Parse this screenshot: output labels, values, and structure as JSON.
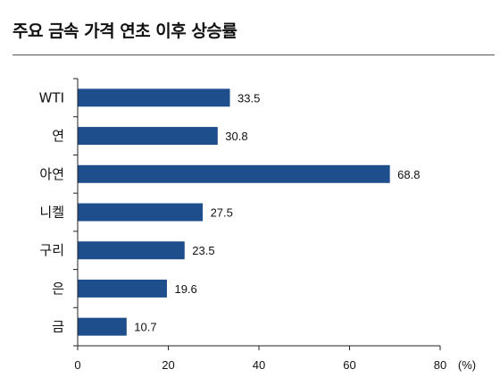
{
  "chart_data": {
    "type": "bar",
    "orientation": "horizontal",
    "title": "주요 금속 가격 연초 이후 상승률",
    "categories": [
      "WTI",
      "연",
      "아연",
      "니켈",
      "구리",
      "은",
      "금"
    ],
    "values": [
      33.5,
      30.8,
      68.8,
      27.5,
      23.5,
      19.6,
      10.7
    ],
    "data_labels": [
      "33.5",
      "30.8",
      "68.8",
      "27.5",
      "23.5",
      "19.6",
      "10.7"
    ],
    "xlim": [
      0,
      80
    ],
    "xticks": [
      "0",
      "20",
      "40",
      "60",
      "80"
    ],
    "xunit": "(%)",
    "grid": false,
    "legend": "none",
    "bar_color": "#1f4e8c"
  }
}
